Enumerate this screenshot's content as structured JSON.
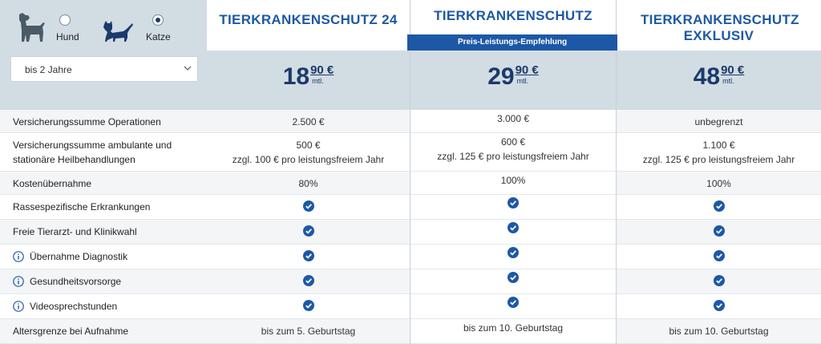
{
  "pets": {
    "dog_label": "Hund",
    "cat_label": "Katze",
    "selected": "Katze",
    "dog_icon": "dog-icon",
    "cat_icon": "cat-icon"
  },
  "age_select": {
    "value": "bis 2 Jahre"
  },
  "recommendation_badge": "Preis-Leistungs-Empfehlung",
  "plans": [
    {
      "name": "TIERKRANKENSCHUTZ 24",
      "price_euros": "18",
      "price_cents": "90 €",
      "period": "mtl."
    },
    {
      "name": "TIERKRANKENSCHUTZ",
      "price_euros": "29",
      "price_cents": "90 €",
      "period": "mtl."
    },
    {
      "name": "TIERKRANKENSCHUTZ EXKLUSIV",
      "price_euros": "48",
      "price_cents": "90 €",
      "period": "mtl."
    }
  ],
  "rows": [
    {
      "label": "Versicherungssumme Operationen",
      "values": [
        "2.500 €",
        "3.000 €",
        "unbegrenzt"
      ]
    },
    {
      "label": "Versicherungssumme ambulante und stationäre Heilbehandlungen",
      "values": [
        [
          "500 €",
          "zzgl. 100 € pro leistungsfreiem Jahr"
        ],
        [
          "600 €",
          "zzgl. 125 € pro leistungsfreiem Jahr"
        ],
        [
          "1.100 €",
          "zzgl. 125 € pro leistungsfreiem Jahr"
        ]
      ]
    },
    {
      "label": "Kostenübernahme",
      "values": [
        "80%",
        "100%",
        "100%"
      ]
    },
    {
      "label": "Rassespezifische Erkrankungen",
      "values": [
        "check",
        "check",
        "check"
      ]
    },
    {
      "label": "Freie Tierarzt- und Klinikwahl",
      "values": [
        "check",
        "check",
        "check"
      ]
    },
    {
      "label": "Übernahme Diagnostik",
      "info": true,
      "values": [
        "check",
        "check",
        "check"
      ]
    },
    {
      "label": "Gesundheitsvorsorge",
      "info": true,
      "values": [
        "check",
        "check",
        "check"
      ]
    },
    {
      "label": "Videosprechstunden",
      "info": true,
      "values": [
        "check",
        "check",
        "check"
      ]
    },
    {
      "label": "Altersgrenze bei Aufnahme",
      "values": [
        "bis zum 5. Geburtstag",
        "bis zum 10. Geburtstag",
        "bis zum 10. Geburtstag"
      ]
    }
  ],
  "colors": {
    "brand_blue": "#1d58a6",
    "dark_blue": "#1b3a6b",
    "header_gray": "#d2dce3"
  }
}
